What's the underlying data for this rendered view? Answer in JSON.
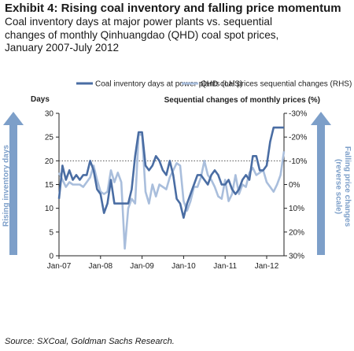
{
  "header": {
    "title": "Exhibit 4: Rising coal inventory and falling price momentum",
    "subtitle_lines": [
      "Coal inventory days at major power plants vs. sequential",
      "changes of monthly Qinhuangdao (QHD) coal spot prices,",
      "January 2007-July 2012"
    ]
  },
  "source": "Source: SXCoal, Goldman Sachs Research.",
  "colors": {
    "lhs_series": "#4a6da3",
    "rhs_series": "#a9bedc",
    "arrow": "#7d9fc9"
  },
  "chart_data": {
    "type": "line",
    "x_tick_labels": [
      "Jan-07",
      "Jan-08",
      "Jan-09",
      "Jan-10",
      "Jan-11",
      "Jan-12"
    ],
    "x_range": [
      "Jan-07",
      "Jul-12"
    ],
    "ylabel_left": "Days",
    "ylabel_right": "Sequential changes of monthly prices (%)",
    "ylim_left": [
      0,
      30
    ],
    "ylim_right": [
      30,
      -30
    ],
    "right_axis_reversed": true,
    "yticks_left": [
      "30",
      "25",
      "20",
      "15",
      "10",
      "5",
      "0"
    ],
    "yticks_right": [
      "-30%",
      "-20%",
      "-10%",
      "0%",
      "10%",
      "20%",
      "30%"
    ],
    "reference_line": {
      "axis": "right",
      "value": -10,
      "style": "dotted"
    },
    "side_label_left": "Rising inventory days",
    "side_label_right_lines": [
      "Falling price changes",
      "(reverse scale)"
    ],
    "legend_position": "top",
    "series": [
      {
        "name": "Coal inventory days at power plants (LHS)",
        "axis": "left",
        "start": "Jan-07",
        "values": [
          12,
          19,
          16,
          18,
          16,
          17,
          16,
          17,
          17,
          20,
          18,
          14,
          13,
          9,
          11,
          16,
          11,
          11,
          11,
          11,
          11,
          14,
          21,
          26,
          26,
          19,
          18,
          19,
          21,
          20,
          18,
          17,
          20,
          17,
          12,
          11,
          8,
          11,
          13,
          15,
          17,
          17,
          16,
          15,
          17,
          18,
          17,
          15,
          15,
          16,
          14,
          13,
          14,
          16,
          17,
          16,
          21,
          21,
          18,
          18,
          19,
          24,
          27,
          27,
          27,
          27
        ]
      },
      {
        "name": "QHD coal prices sequential changes (RHS)",
        "axis": "right",
        "start": "Jan-07",
        "values": [
          -5,
          -2,
          1,
          -1,
          0,
          0,
          0,
          1,
          -1,
          -3,
          -8,
          -2,
          3,
          4,
          3,
          -6,
          -1,
          -5,
          -1,
          27,
          10,
          6,
          8,
          -21,
          -21,
          3,
          8,
          0,
          5,
          0,
          1,
          2,
          -3,
          -6,
          -9,
          -8,
          7,
          11,
          7,
          1,
          1,
          -3,
          -10,
          -4,
          -2,
          1,
          5,
          6,
          -2,
          7,
          4,
          -4,
          4,
          0,
          1,
          -5,
          -7,
          -4,
          -5,
          -6,
          -1,
          1,
          3,
          0,
          -4,
          -14
        ]
      }
    ]
  }
}
